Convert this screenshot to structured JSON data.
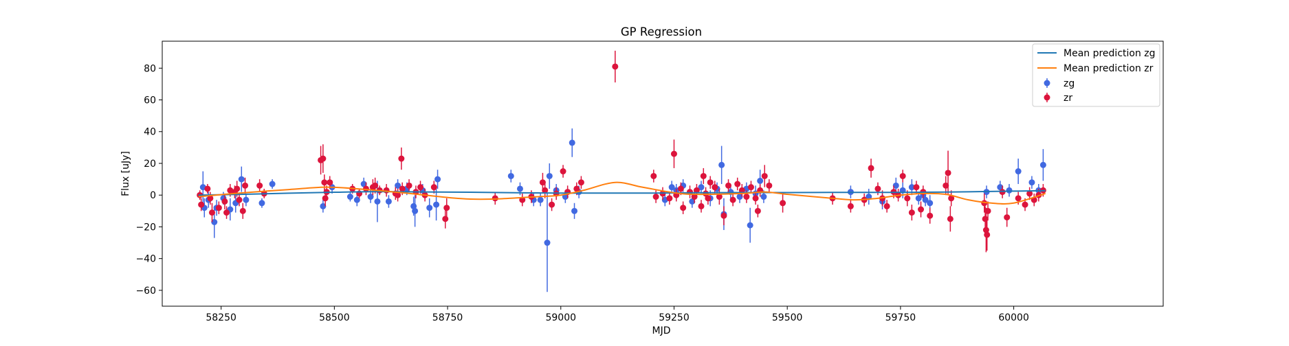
{
  "chart_data": {
    "type": "scatter",
    "title": "GP Regression",
    "xlabel": "MJD",
    "ylabel": "Flux [uJy]",
    "xlim": [
      58120,
      60330
    ],
    "ylim": [
      -70,
      97
    ],
    "xticks": [
      58250,
      58500,
      58750,
      59000,
      59250,
      59500,
      59750,
      60000
    ],
    "yticks": [
      -60,
      -40,
      -20,
      0,
      20,
      40,
      60,
      80
    ],
    "grid": false,
    "legend_position": "top-right",
    "legend": [
      "Mean prediction zg",
      "Mean prediction zr",
      "zg",
      "zr"
    ],
    "colors": {
      "zg_line": "#1f77b4",
      "zr_line": "#ff7f0e",
      "zg_points": "#4169e1",
      "zr_points": "#dc143c"
    },
    "mean_lines": [
      {
        "name": "Mean prediction zg",
        "color": "#1f77b4",
        "x": [
          58200,
          58300,
          58400,
          58500,
          58600,
          58700,
          58800,
          58900,
          59000,
          59100,
          59200,
          59300,
          59400,
          59500,
          59600,
          59700,
          59800,
          59900,
          60000,
          60070
        ],
        "y": [
          0,
          0.5,
          1.2,
          1.8,
          2.2,
          2.0,
          1.8,
          1.5,
          1.3,
          1.3,
          1.3,
          1.5,
          1.6,
          1.6,
          1.7,
          1.7,
          1.8,
          2.1,
          2.5,
          2.8
        ]
      },
      {
        "name": "Mean prediction zr",
        "color": "#ff7f0e",
        "x": [
          58200,
          58300,
          58400,
          58480,
          58550,
          58650,
          58700,
          58750,
          58800,
          58850,
          58900,
          58950,
          59000,
          59050,
          59120,
          59180,
          59250,
          59300,
          59400,
          59450,
          59500,
          59600,
          59650,
          59700,
          59750,
          59800,
          59850,
          59900,
          59950,
          60000,
          60070
        ],
        "y": [
          -1,
          1.5,
          3.5,
          5,
          4,
          1.5,
          0,
          -1.5,
          -2.5,
          -2.5,
          -1.8,
          -1,
          0,
          3,
          8,
          5,
          1.5,
          0.5,
          1,
          2,
          0.5,
          -2,
          -3,
          -2,
          0,
          1,
          0.5,
          -3,
          -5,
          -5,
          1
        ]
      }
    ],
    "series": [
      {
        "name": "zg",
        "color": "#4169e1",
        "points": [
          [
            58210,
            5,
            10
          ],
          [
            58213,
            -8,
            6
          ],
          [
            58222,
            -3,
            5
          ],
          [
            58235,
            -17,
            10
          ],
          [
            58240,
            -8,
            5
          ],
          [
            58255,
            -2,
            4
          ],
          [
            58270,
            -9,
            7
          ],
          [
            58282,
            -5,
            6
          ],
          [
            58295,
            10,
            8
          ],
          [
            58305,
            -3,
            4
          ],
          [
            58340,
            -5,
            3
          ],
          [
            58363,
            7,
            3
          ],
          [
            58475,
            -7,
            4
          ],
          [
            58495,
            5,
            4
          ],
          [
            58535,
            -1,
            3
          ],
          [
            58550,
            -3,
            4
          ],
          [
            58565,
            7,
            4
          ],
          [
            58580,
            -1,
            4
          ],
          [
            58595,
            -4,
            13
          ],
          [
            58620,
            -4,
            4
          ],
          [
            58640,
            6,
            4
          ],
          [
            58660,
            4,
            4
          ],
          [
            58675,
            -7,
            6
          ],
          [
            58678,
            -10,
            10
          ],
          [
            58695,
            3,
            4
          ],
          [
            58710,
            -8,
            6
          ],
          [
            58725,
            -6,
            10
          ],
          [
            58728,
            10,
            6
          ],
          [
            58890,
            12,
            4
          ],
          [
            58910,
            4,
            4
          ],
          [
            58940,
            -3,
            4
          ],
          [
            58955,
            -3,
            4
          ],
          [
            58970,
            -30,
            31
          ],
          [
            58975,
            12,
            8
          ],
          [
            58990,
            3,
            4
          ],
          [
            59010,
            -1,
            4
          ],
          [
            59025,
            33,
            9
          ],
          [
            59030,
            -10,
            5
          ],
          [
            59040,
            2,
            4
          ],
          [
            59230,
            -3,
            4
          ],
          [
            59245,
            5,
            4
          ],
          [
            59255,
            3,
            4
          ],
          [
            59270,
            6,
            4
          ],
          [
            59290,
            -4,
            4
          ],
          [
            59310,
            5,
            4
          ],
          [
            59330,
            -2,
            5
          ],
          [
            59345,
            4,
            4
          ],
          [
            59355,
            19,
            12
          ],
          [
            59360,
            -12,
            10
          ],
          [
            59375,
            2,
            4
          ],
          [
            59395,
            -1,
            4
          ],
          [
            59410,
            4,
            4
          ],
          [
            59418,
            -19,
            11
          ],
          [
            59430,
            1,
            5
          ],
          [
            59440,
            9,
            7
          ],
          [
            59448,
            -1,
            4
          ],
          [
            59640,
            2,
            4
          ],
          [
            59680,
            -1,
            5
          ],
          [
            59710,
            -4,
            5
          ],
          [
            59740,
            6,
            5
          ],
          [
            59755,
            3,
            5
          ],
          [
            59775,
            5,
            5
          ],
          [
            59790,
            -2,
            4
          ],
          [
            59800,
            0,
            4
          ],
          [
            59805,
            -3,
            4
          ],
          [
            59815,
            -5,
            5
          ],
          [
            59940,
            2,
            4
          ],
          [
            59970,
            5,
            4
          ],
          [
            59990,
            3,
            4
          ],
          [
            60010,
            15,
            8
          ],
          [
            60040,
            8,
            4
          ],
          [
            60055,
            3,
            4
          ],
          [
            60065,
            19,
            10
          ]
        ]
      },
      {
        "name": "zr",
        "color": "#dc143c",
        "points": [
          [
            58203,
            0,
            3
          ],
          [
            58206,
            -6,
            4
          ],
          [
            58220,
            4,
            3
          ],
          [
            58226,
            -2,
            4
          ],
          [
            58230,
            -11,
            6
          ],
          [
            58245,
            -8,
            4
          ],
          [
            58258,
            -4,
            5
          ],
          [
            58262,
            -11,
            4
          ],
          [
            58270,
            3,
            4
          ],
          [
            58280,
            2,
            4
          ],
          [
            58285,
            4,
            5
          ],
          [
            58290,
            -3,
            4
          ],
          [
            58298,
            -10,
            5
          ],
          [
            58303,
            6,
            5
          ],
          [
            58335,
            6,
            4
          ],
          [
            58345,
            1,
            3
          ],
          [
            58470,
            22,
            9
          ],
          [
            58475,
            23,
            9
          ],
          [
            58478,
            8,
            5
          ],
          [
            58480,
            -2,
            5
          ],
          [
            58483,
            2,
            4
          ],
          [
            58490,
            8,
            4
          ],
          [
            58540,
            4,
            3
          ],
          [
            58555,
            1,
            3
          ],
          [
            58570,
            4,
            4
          ],
          [
            58585,
            5,
            5
          ],
          [
            58590,
            6,
            5
          ],
          [
            58600,
            3,
            3
          ],
          [
            58615,
            3,
            4
          ],
          [
            58635,
            1,
            4
          ],
          [
            58640,
            0,
            4
          ],
          [
            58648,
            23,
            7
          ],
          [
            58650,
            4,
            4
          ],
          [
            58665,
            6,
            4
          ],
          [
            58680,
            2,
            4
          ],
          [
            58690,
            5,
            4
          ],
          [
            58700,
            0,
            4
          ],
          [
            58720,
            5,
            4
          ],
          [
            58745,
            -15,
            6
          ],
          [
            58748,
            -8,
            6
          ],
          [
            58855,
            -2,
            4
          ],
          [
            58915,
            -3,
            4
          ],
          [
            58935,
            -1,
            4
          ],
          [
            58960,
            8,
            6
          ],
          [
            58965,
            3,
            5
          ],
          [
            58980,
            -6,
            4
          ],
          [
            58990,
            1,
            4
          ],
          [
            59005,
            15,
            4
          ],
          [
            59015,
            2,
            4
          ],
          [
            59035,
            4,
            4
          ],
          [
            59045,
            8,
            4
          ],
          [
            59205,
            12,
            4
          ],
          [
            59210,
            -1,
            4
          ],
          [
            59225,
            1,
            4
          ],
          [
            59240,
            -2,
            4
          ],
          [
            59250,
            26,
            9
          ],
          [
            59255,
            0,
            4
          ],
          [
            59265,
            4,
            4
          ],
          [
            59270,
            -8,
            4
          ],
          [
            59285,
            2,
            4
          ],
          [
            59295,
            -1,
            4
          ],
          [
            59300,
            3,
            4
          ],
          [
            59310,
            -7,
            4
          ],
          [
            59315,
            12,
            5
          ],
          [
            59320,
            1,
            4
          ],
          [
            59325,
            -2,
            4
          ],
          [
            59330,
            8,
            4
          ],
          [
            59340,
            5,
            4
          ],
          [
            59350,
            -1,
            5
          ],
          [
            59360,
            -13,
            6
          ],
          [
            59370,
            6,
            4
          ],
          [
            59380,
            -3,
            4
          ],
          [
            59390,
            7,
            4
          ],
          [
            59400,
            3,
            4
          ],
          [
            59410,
            -1,
            4
          ],
          [
            59420,
            5,
            4
          ],
          [
            59430,
            -2,
            4
          ],
          [
            59435,
            -10,
            4
          ],
          [
            59440,
            3,
            4
          ],
          [
            59450,
            12,
            7
          ],
          [
            59460,
            6,
            4
          ],
          [
            59490,
            -5,
            6
          ],
          [
            59600,
            -2,
            4
          ],
          [
            59640,
            -7,
            4
          ],
          [
            59670,
            -3,
            4
          ],
          [
            59685,
            17,
            6
          ],
          [
            59700,
            4,
            4
          ],
          [
            59710,
            -2,
            5
          ],
          [
            59720,
            -7,
            4
          ],
          [
            59735,
            2,
            4
          ],
          [
            59745,
            0,
            4
          ],
          [
            59755,
            12,
            4
          ],
          [
            59765,
            -2,
            5
          ],
          [
            59775,
            -11,
            5
          ],
          [
            59785,
            5,
            4
          ],
          [
            59795,
            -9,
            5
          ],
          [
            59800,
            2,
            4
          ],
          [
            59815,
            -13,
            5
          ],
          [
            59850,
            6,
            6
          ],
          [
            59855,
            14,
            14
          ],
          [
            59860,
            -15,
            8
          ],
          [
            59862,
            -2,
            5
          ],
          [
            59935,
            -5,
            6
          ],
          [
            59937,
            -15,
            8
          ],
          [
            59939,
            -22,
            14
          ],
          [
            59941,
            -25,
            10
          ],
          [
            59943,
            -10,
            6
          ],
          [
            59975,
            2,
            4
          ],
          [
            59985,
            -14,
            6
          ],
          [
            60010,
            -2,
            4
          ],
          [
            60025,
            -6,
            4
          ],
          [
            60035,
            1,
            4
          ],
          [
            60045,
            -3,
            4
          ],
          [
            60055,
            0,
            4
          ],
          [
            60065,
            3,
            4
          ],
          [
            59120,
            81,
            10
          ]
        ]
      }
    ]
  }
}
